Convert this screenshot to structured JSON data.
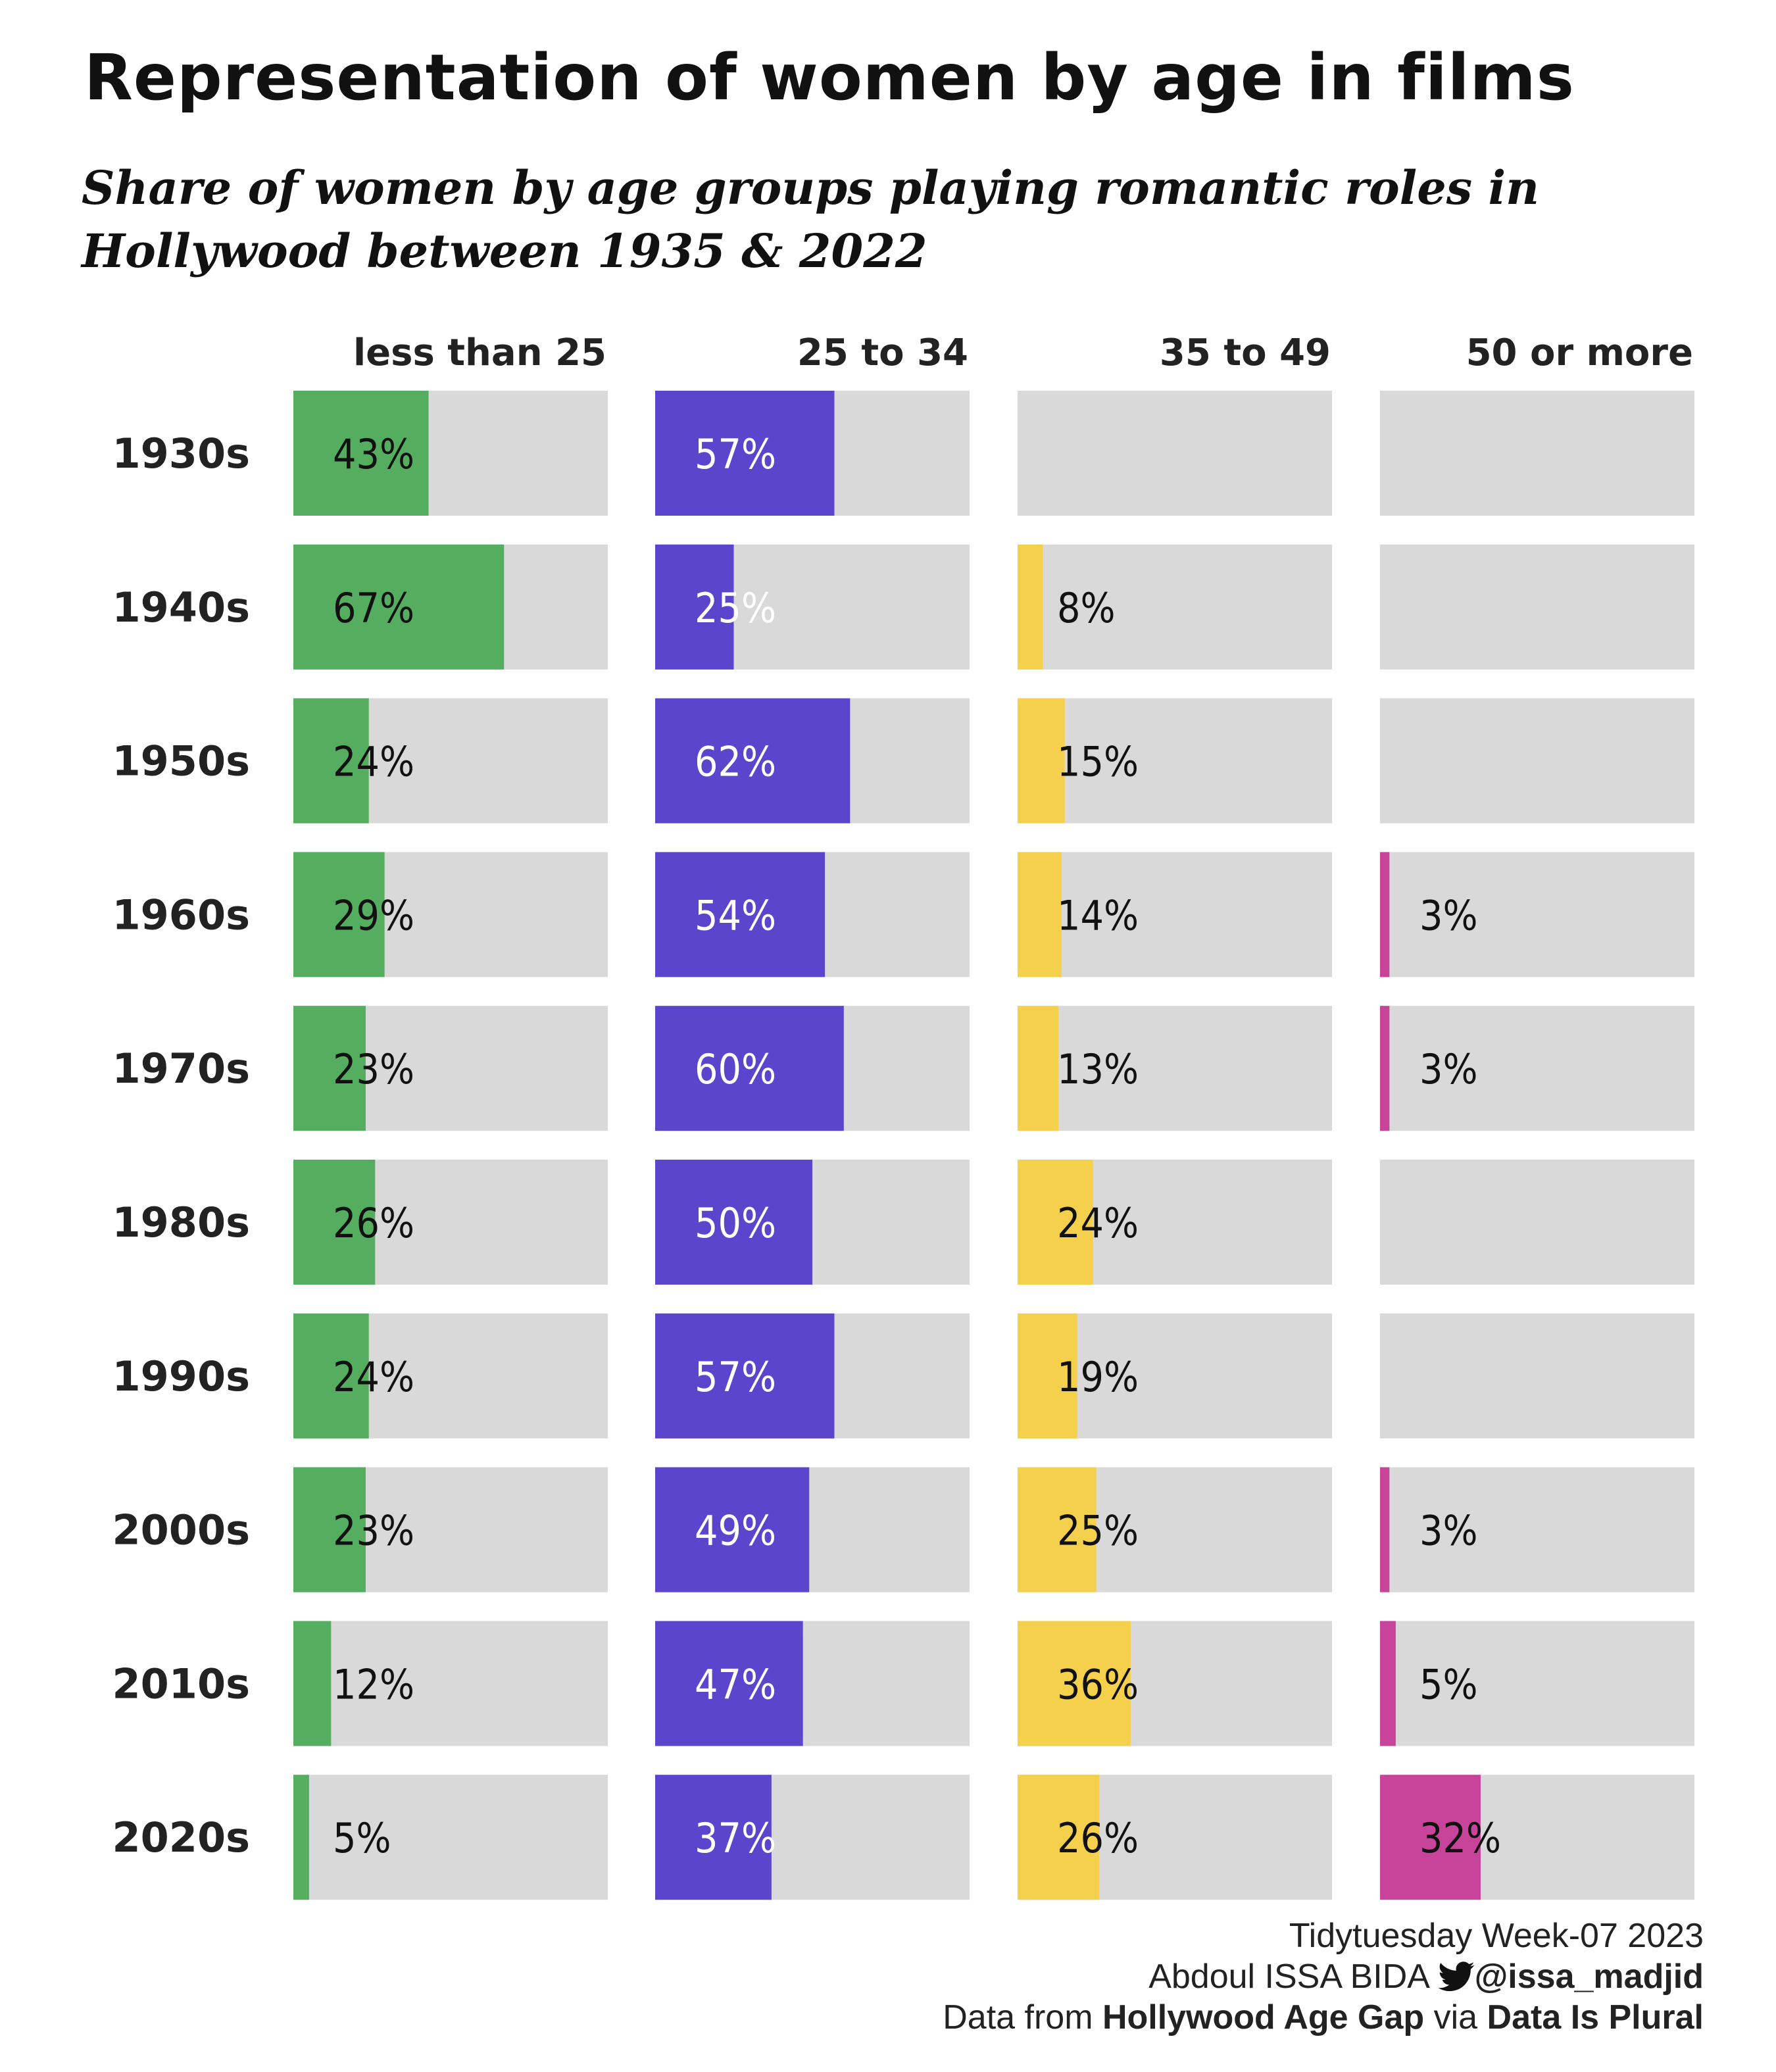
{
  "title": "Representation of women by age in films",
  "subtitle": "Share of women by age groups playing romantic roles in Hollywood between 1935 & 2022",
  "colors": {
    "background_track": "#d9d9d9",
    "less than 25": "#55ad60",
    "25 to 34": "#5b45cc",
    "35 to 49": "#f4d04d",
    "50 or more": "#c8449a",
    "label_on_purple": "#ffffff",
    "label_default": "#111111"
  },
  "chart_data": {
    "type": "bar",
    "layout": "small-multiples horizontal bars (rows = decades, columns = age groups)",
    "categories": [
      "1930s",
      "1940s",
      "1950s",
      "1960s",
      "1970s",
      "1980s",
      "1990s",
      "2000s",
      "2010s",
      "2020s"
    ],
    "xlim": [
      0,
      100
    ],
    "unit": "%",
    "series": [
      {
        "name": "less than 25",
        "values": [
          43,
          67,
          24,
          29,
          23,
          26,
          24,
          23,
          12,
          5
        ]
      },
      {
        "name": "25 to 34",
        "values": [
          57,
          25,
          62,
          54,
          60,
          50,
          57,
          49,
          47,
          37
        ]
      },
      {
        "name": "35 to 49",
        "values": [
          null,
          8,
          15,
          14,
          13,
          24,
          19,
          25,
          36,
          26
        ]
      },
      {
        "name": "50 or more",
        "values": [
          null,
          null,
          null,
          3,
          3,
          null,
          null,
          3,
          5,
          32
        ]
      }
    ],
    "grid": false,
    "legend": "column headers"
  },
  "caption": {
    "line1": "Tidytuesday Week-07 2023",
    "line2_prefix": "Abdoul ISSA BIDA ",
    "handle": "@issa_madjid",
    "line3_prefix": "Data from ",
    "source": "Hollywood Age Gap",
    "via": " via ",
    "via_source": "Data Is Plural"
  }
}
